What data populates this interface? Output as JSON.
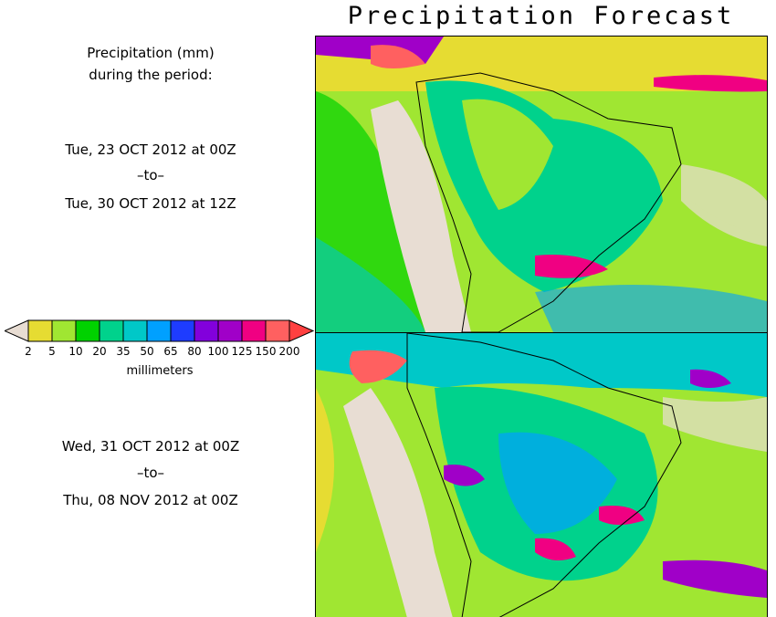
{
  "title": "Precipitation Forecast",
  "description": {
    "line1": "Precipitation (mm)",
    "line2": "during the period:"
  },
  "periods": [
    {
      "start": "Tue, 23 OCT 2012 at 00Z",
      "sep": "–to–",
      "end": "Tue, 30 OCT 2012 at 12Z"
    },
    {
      "start": "Wed, 31 OCT 2012 at 00Z",
      "sep": "–to–",
      "end": "Thu, 08 NOV 2012 at 00Z"
    }
  ],
  "legend": {
    "unit": "millimeters",
    "ticks": [
      "2",
      "5",
      "10",
      "20",
      "35",
      "50",
      "65",
      "80",
      "100",
      "125",
      "150",
      "200"
    ],
    "below_color": "#e8ddd3",
    "colors": [
      "#e6dc32",
      "#a0e632",
      "#00d200",
      "#00d28c",
      "#00c8c8",
      "#00a0ff",
      "#1e3cff",
      "#8200dc",
      "#a000c8",
      "#f00082",
      "#ff6060"
    ],
    "above_color": "#ff4040"
  }
}
